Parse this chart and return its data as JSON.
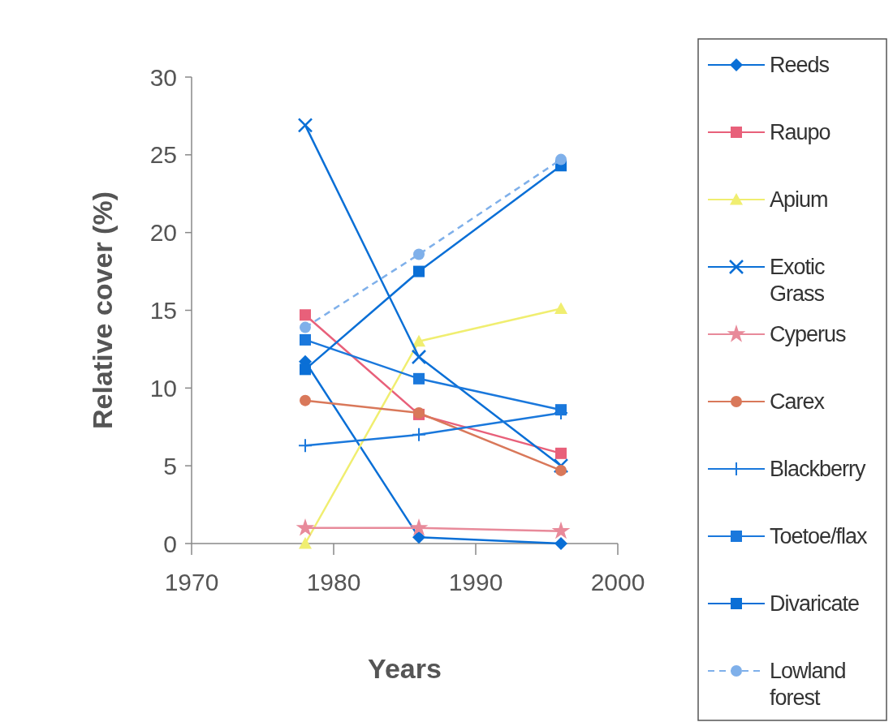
{
  "chart_data": {
    "type": "line",
    "xlabel": "Years",
    "ylabel": "Relative cover  (%)",
    "x": [
      1978,
      1986,
      1996
    ],
    "xlim": [
      1970,
      2000
    ],
    "xticks": [
      1970,
      1980,
      1990,
      2000
    ],
    "ylim": [
      0,
      30
    ],
    "yticks": [
      0,
      5,
      10,
      15,
      20,
      25,
      30
    ],
    "grid": false,
    "legend": "right",
    "series": [
      {
        "name": "Reeds",
        "color": "#0a6fd6",
        "marker": "diamond",
        "values": [
          11.7,
          0.4,
          0
        ]
      },
      {
        "name": "Raupo",
        "color": "#e8607a",
        "marker": "square",
        "values": [
          14.7,
          8.3,
          5.8
        ]
      },
      {
        "name": "Apium",
        "color": "#f0ee70",
        "marker": "triangle",
        "values": [
          0,
          13,
          15.1
        ]
      },
      {
        "name": "Exotic Grass",
        "color": "#0a6fd6",
        "marker": "cross",
        "values": [
          26.9,
          12,
          5
        ]
      },
      {
        "name": "Cyperus",
        "color": "#e88a9a",
        "marker": "star",
        "values": [
          1,
          1,
          0.8
        ]
      },
      {
        "name": "Carex",
        "color": "#d9785a",
        "marker": "circle",
        "values": [
          9.2,
          8.4,
          4.7
        ]
      },
      {
        "name": "Blackberry",
        "color": "#1a78dc",
        "marker": "plus",
        "values": [
          6.3,
          7,
          8.4
        ]
      },
      {
        "name": "Toetoe/flax",
        "color": "#1a78dc",
        "marker": "square",
        "values": [
          13.1,
          10.6,
          8.6
        ]
      },
      {
        "name": "Divaricate",
        "color": "#0a6fd6",
        "marker": "square",
        "values": [
          11.2,
          17.5,
          24.3
        ]
      },
      {
        "name": "Lowland forest",
        "color": "#7fb0ea",
        "marker": "circle",
        "line_style": "dashed",
        "values": [
          13.9,
          18.6,
          24.7
        ]
      }
    ]
  }
}
